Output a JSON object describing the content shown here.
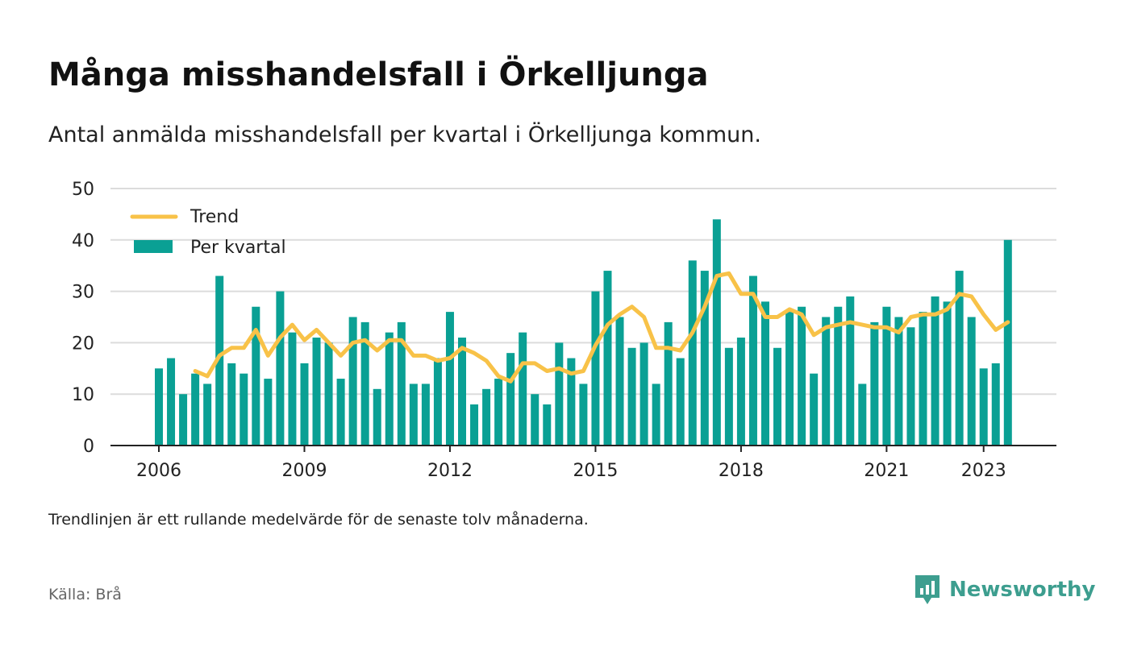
{
  "header": {
    "title": "Många misshandelsfall i Örkelljunga",
    "subtitle": "Antal anmälda misshandelsfall per kvartal i Örkelljunga kommun."
  },
  "footer": {
    "note": "Trendlinjen är ett rullande medelvärde för de senaste tolv månaderna.",
    "source": "Källa: Brå",
    "brand": "Newsworthy",
    "brand_icon": "newsworthy-logo-icon"
  },
  "colors": {
    "bar": "#0aa094",
    "trend": "#f8c248",
    "grid": "#dcdcdc",
    "axis": "#222222",
    "brand": "#3d9e8f"
  },
  "chart_data": {
    "type": "bar",
    "x_start": "2006 Q1",
    "xticks": [
      "2006",
      "2009",
      "2012",
      "2015",
      "2018",
      "2021",
      "2023"
    ],
    "yticks": [
      0,
      10,
      20,
      30,
      40,
      50
    ],
    "ylim": [
      0,
      50
    ],
    "grid": true,
    "legend_position": "top-left",
    "series": [
      {
        "name": "Per kvartal",
        "type": "bar",
        "values": [
          15,
          17,
          10,
          14,
          12,
          33,
          16,
          14,
          27,
          13,
          30,
          22,
          16,
          21,
          20,
          13,
          25,
          24,
          11,
          22,
          24,
          12,
          12,
          17,
          26,
          21,
          8,
          11,
          13,
          18,
          22,
          10,
          8,
          20,
          17,
          12,
          30,
          34,
          25,
          19,
          20,
          12,
          24,
          17,
          36,
          34,
          44,
          19,
          21,
          33,
          28,
          19,
          26,
          27,
          14,
          25,
          27,
          29,
          12,
          24,
          27,
          25,
          23,
          26,
          29,
          28,
          34,
          25,
          15,
          16,
          40
        ]
      },
      {
        "name": "Trend",
        "type": "line",
        "values": [
          null,
          null,
          null,
          14.5,
          13.5,
          17.5,
          19,
          19,
          22.5,
          17.5,
          21,
          23.5,
          20.5,
          22.5,
          20,
          17.5,
          20,
          20.5,
          18.5,
          20.5,
          20.5,
          17.5,
          17.5,
          16.5,
          17,
          19,
          18,
          16.5,
          13.5,
          12.5,
          16,
          16,
          14.5,
          15,
          14,
          14.5,
          19.5,
          23.5,
          25.5,
          27,
          25,
          19,
          19,
          18.5,
          22,
          27,
          33,
          33.5,
          29.5,
          29.5,
          25,
          25,
          26.5,
          25.5,
          21.5,
          23,
          23.5,
          24,
          23.5,
          23,
          23,
          22,
          25,
          25.5,
          25.5,
          26.5,
          29.5,
          29,
          25.5,
          22.5,
          24
        ]
      }
    ]
  }
}
